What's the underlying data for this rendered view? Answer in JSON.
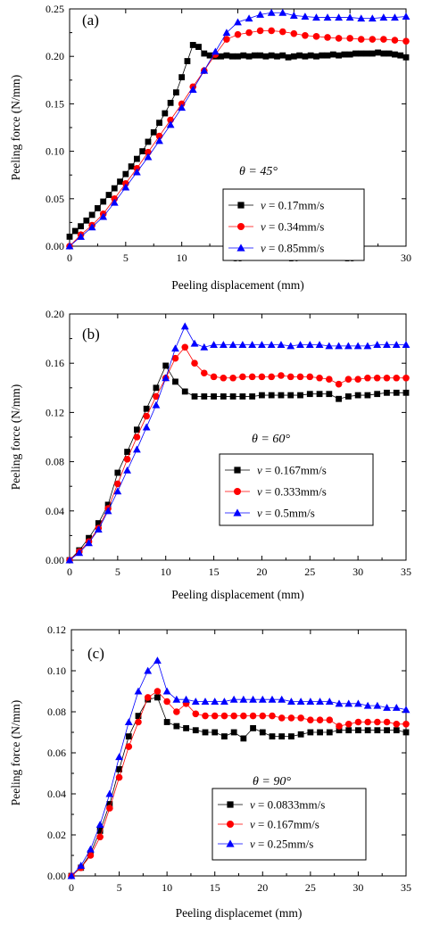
{
  "chart_data": [
    {
      "type": "line",
      "panel_label": "(a)",
      "annotation": "θ = 45°",
      "xlabel": "Peeling displacement (mm)",
      "ylabel": "Peeling force (N/mm)",
      "xlim": [
        0,
        30
      ],
      "ylim": [
        0,
        0.25
      ],
      "xticks": [
        "0",
        "5",
        "10",
        "15",
        "20",
        "25",
        "30"
      ],
      "yticks": [
        "0.00",
        "0.05",
        "0.10",
        "0.15",
        "0.20",
        "0.25"
      ],
      "legend_position": "center-right",
      "series": [
        {
          "name": "v = 0.17mm/s",
          "legend_v": "v",
          "legend_value": " = 0.17mm/s",
          "color": "#000000",
          "marker": "square",
          "x": [
            0,
            0.5,
            1,
            1.5,
            2,
            2.5,
            3,
            3.5,
            4,
            4.5,
            5,
            5.5,
            6,
            6.5,
            7,
            7.5,
            8,
            8.5,
            9,
            9.5,
            10,
            10.5,
            11,
            11.5,
            12,
            12.5,
            13,
            13.5,
            14,
            14.5,
            15,
            15.5,
            16,
            16.5,
            17,
            17.5,
            18,
            18.5,
            19,
            19.5,
            20,
            20.5,
            21,
            21.5,
            22,
            22.5,
            23,
            23.5,
            24,
            24.5,
            25,
            25.5,
            26,
            26.5,
            27,
            27.5,
            28,
            28.5,
            29,
            29.5,
            30
          ],
          "y": [
            0.01,
            0.016,
            0.021,
            0.027,
            0.033,
            0.04,
            0.047,
            0.054,
            0.061,
            0.068,
            0.076,
            0.084,
            0.092,
            0.1,
            0.11,
            0.12,
            0.13,
            0.14,
            0.151,
            0.162,
            0.178,
            0.195,
            0.212,
            0.21,
            0.203,
            0.201,
            0.2,
            0.2,
            0.201,
            0.2,
            0.2,
            0.201,
            0.2,
            0.201,
            0.201,
            0.2,
            0.201,
            0.2,
            0.201,
            0.199,
            0.2,
            0.201,
            0.2,
            0.201,
            0.2,
            0.201,
            0.201,
            0.202,
            0.201,
            0.202,
            0.202,
            0.203,
            0.203,
            0.203,
            0.203,
            0.204,
            0.203,
            0.203,
            0.202,
            0.201,
            0.199
          ]
        },
        {
          "name": "v = 0.34mm/s",
          "legend_v": "v",
          "legend_value": " = 0.34mm/s",
          "color": "#ff0000",
          "marker": "circle",
          "x": [
            0,
            1,
            2,
            3,
            4,
            5,
            6,
            7,
            8,
            9,
            10,
            11,
            12,
            13,
            14,
            15,
            16,
            17,
            18,
            19,
            20,
            21,
            22,
            23,
            24,
            25,
            26,
            27,
            28,
            29,
            30
          ],
          "y": [
            0.0,
            0.012,
            0.022,
            0.034,
            0.05,
            0.066,
            0.082,
            0.099,
            0.116,
            0.133,
            0.15,
            0.168,
            0.185,
            0.202,
            0.218,
            0.223,
            0.225,
            0.227,
            0.227,
            0.226,
            0.224,
            0.222,
            0.221,
            0.22,
            0.219,
            0.219,
            0.218,
            0.218,
            0.218,
            0.217,
            0.216
          ]
        },
        {
          "name": "v = 0.85mm/s",
          "legend_v": "v",
          "legend_value": " = 0.85mm/s",
          "color": "#0000ff",
          "marker": "triangle",
          "x": [
            0,
            1,
            2,
            3,
            4,
            5,
            6,
            7,
            8,
            9,
            10,
            11,
            12,
            13,
            14,
            15,
            16,
            17,
            18,
            19,
            20,
            21,
            22,
            23,
            24,
            25,
            26,
            27,
            28,
            29,
            30
          ],
          "y": [
            0.0,
            0.01,
            0.02,
            0.031,
            0.046,
            0.062,
            0.078,
            0.094,
            0.111,
            0.128,
            0.146,
            0.165,
            0.185,
            0.205,
            0.225,
            0.236,
            0.24,
            0.244,
            0.246,
            0.246,
            0.243,
            0.242,
            0.241,
            0.241,
            0.241,
            0.241,
            0.24,
            0.24,
            0.241,
            0.241,
            0.242
          ]
        }
      ]
    },
    {
      "type": "line",
      "panel_label": "(b)",
      "annotation": "θ = 60°",
      "xlabel": "Peeling displacement (mm)",
      "ylabel": "Peeling force (N/mm)",
      "xlim": [
        0,
        35
      ],
      "ylim": [
        0,
        0.2
      ],
      "xticks": [
        "0",
        "5",
        "10",
        "15",
        "20",
        "25",
        "30",
        "35"
      ],
      "yticks": [
        "0.00",
        "0.04",
        "0.08",
        "0.12",
        "0.16",
        "0.20"
      ],
      "legend_position": "center-right",
      "series": [
        {
          "name": "v = 0.167mm/s",
          "legend_v": "v",
          "legend_value": " = 0.167mm/s",
          "color": "#000000",
          "marker": "square",
          "x": [
            0,
            1,
            2,
            3,
            4,
            5,
            6,
            7,
            8,
            9,
            10,
            11,
            12,
            13,
            14,
            15,
            16,
            17,
            18,
            19,
            20,
            21,
            22,
            23,
            24,
            25,
            26,
            27,
            28,
            29,
            30,
            31,
            32,
            33,
            34,
            35
          ],
          "y": [
            0.0,
            0.008,
            0.018,
            0.03,
            0.045,
            0.071,
            0.088,
            0.106,
            0.123,
            0.14,
            0.158,
            0.145,
            0.137,
            0.133,
            0.133,
            0.133,
            0.133,
            0.133,
            0.133,
            0.133,
            0.134,
            0.134,
            0.134,
            0.134,
            0.134,
            0.135,
            0.135,
            0.135,
            0.131,
            0.133,
            0.134,
            0.134,
            0.135,
            0.136,
            0.136,
            0.136
          ]
        },
        {
          "name": "v = 0.333mm/s",
          "legend_v": "v",
          "legend_value": " = 0.333mm/s",
          "color": "#ff0000",
          "marker": "circle",
          "x": [
            0,
            1,
            2,
            3,
            4,
            5,
            6,
            7,
            8,
            9,
            10,
            11,
            12,
            13,
            14,
            15,
            16,
            17,
            18,
            19,
            20,
            21,
            22,
            23,
            24,
            25,
            26,
            27,
            28,
            29,
            30,
            31,
            32,
            33,
            34,
            35
          ],
          "y": [
            0.0,
            0.007,
            0.015,
            0.026,
            0.042,
            0.062,
            0.082,
            0.1,
            0.117,
            0.133,
            0.148,
            0.164,
            0.173,
            0.16,
            0.152,
            0.149,
            0.148,
            0.148,
            0.149,
            0.149,
            0.149,
            0.149,
            0.15,
            0.149,
            0.149,
            0.149,
            0.148,
            0.147,
            0.143,
            0.147,
            0.147,
            0.148,
            0.148,
            0.148,
            0.148,
            0.148
          ]
        },
        {
          "name": "v = 0.5mm/s",
          "legend_v": "v",
          "legend_value": " = 0.5mm/s",
          "color": "#0000ff",
          "marker": "triangle",
          "x": [
            0,
            1,
            2,
            3,
            4,
            5,
            6,
            7,
            8,
            9,
            10,
            11,
            12,
            13,
            14,
            15,
            16,
            17,
            18,
            19,
            20,
            21,
            22,
            23,
            24,
            25,
            26,
            27,
            28,
            29,
            30,
            31,
            32,
            33,
            34,
            35
          ],
          "y": [
            0.0,
            0.006,
            0.014,
            0.025,
            0.04,
            0.056,
            0.073,
            0.09,
            0.108,
            0.126,
            0.148,
            0.172,
            0.19,
            0.176,
            0.173,
            0.175,
            0.175,
            0.175,
            0.175,
            0.175,
            0.175,
            0.175,
            0.175,
            0.174,
            0.175,
            0.175,
            0.175,
            0.174,
            0.174,
            0.174,
            0.174,
            0.174,
            0.175,
            0.175,
            0.175,
            0.175
          ]
        }
      ]
    },
    {
      "type": "line",
      "panel_label": "(c)",
      "annotation": "θ = 90°",
      "xlabel": "Peeling displacemet (mm)",
      "ylabel": "Peeling force (N/mm)",
      "xlim": [
        0,
        35
      ],
      "ylim": [
        0,
        0.12
      ],
      "xticks": [
        "0",
        "5",
        "10",
        "15",
        "20",
        "25",
        "30",
        "35"
      ],
      "yticks": [
        "0.00",
        "0.02",
        "0.04",
        "0.06",
        "0.08",
        "0.10",
        "0.12"
      ],
      "legend_position": "lower-center",
      "series": [
        {
          "name": "v = 0.0833mm/s",
          "legend_v": "v",
          "legend_value": " = 0.0833mm/s",
          "color": "#000000",
          "marker": "square",
          "x": [
            0,
            1,
            2,
            3,
            4,
            5,
            6,
            7,
            8,
            9,
            10,
            11,
            12,
            13,
            14,
            15,
            16,
            17,
            18,
            19,
            20,
            21,
            22,
            23,
            24,
            25,
            26,
            27,
            28,
            29,
            30,
            31,
            32,
            33,
            34,
            35
          ],
          "y": [
            0.0,
            0.004,
            0.011,
            0.022,
            0.035,
            0.052,
            0.068,
            0.078,
            0.086,
            0.087,
            0.075,
            0.073,
            0.072,
            0.071,
            0.07,
            0.07,
            0.068,
            0.07,
            0.067,
            0.072,
            0.07,
            0.068,
            0.068,
            0.068,
            0.069,
            0.07,
            0.07,
            0.07,
            0.071,
            0.071,
            0.071,
            0.071,
            0.071,
            0.071,
            0.071,
            0.07
          ]
        },
        {
          "name": "v = 0.167mm/s",
          "legend_v": "v",
          "legend_value": " = 0.167mm/s",
          "color": "#ff0000",
          "marker": "circle",
          "x": [
            0,
            1,
            2,
            3,
            4,
            5,
            6,
            7,
            8,
            9,
            10,
            11,
            12,
            13,
            14,
            15,
            16,
            17,
            18,
            19,
            20,
            21,
            22,
            23,
            24,
            25,
            26,
            27,
            28,
            29,
            30,
            31,
            32,
            33,
            34,
            35
          ],
          "y": [
            0.0,
            0.004,
            0.01,
            0.019,
            0.033,
            0.048,
            0.063,
            0.075,
            0.087,
            0.09,
            0.085,
            0.08,
            0.084,
            0.079,
            0.078,
            0.078,
            0.078,
            0.078,
            0.078,
            0.078,
            0.078,
            0.078,
            0.077,
            0.077,
            0.077,
            0.076,
            0.076,
            0.076,
            0.073,
            0.074,
            0.075,
            0.075,
            0.075,
            0.075,
            0.074,
            0.074
          ]
        },
        {
          "name": "v = 0.25mm/s",
          "legend_v": "v",
          "legend_value": " = 0.25mm/s",
          "color": "#0000ff",
          "marker": "triangle",
          "x": [
            0,
            1,
            2,
            3,
            4,
            5,
            6,
            7,
            8,
            9,
            10,
            11,
            12,
            13,
            14,
            15,
            16,
            17,
            18,
            19,
            20,
            21,
            22,
            23,
            24,
            25,
            26,
            27,
            28,
            29,
            30,
            31,
            32,
            33,
            34,
            35
          ],
          "y": [
            0.0,
            0.005,
            0.013,
            0.025,
            0.04,
            0.058,
            0.075,
            0.09,
            0.1,
            0.105,
            0.09,
            0.086,
            0.086,
            0.085,
            0.085,
            0.085,
            0.085,
            0.086,
            0.086,
            0.086,
            0.086,
            0.086,
            0.086,
            0.085,
            0.085,
            0.085,
            0.085,
            0.085,
            0.084,
            0.084,
            0.084,
            0.083,
            0.083,
            0.082,
            0.082,
            0.081
          ]
        }
      ]
    }
  ]
}
